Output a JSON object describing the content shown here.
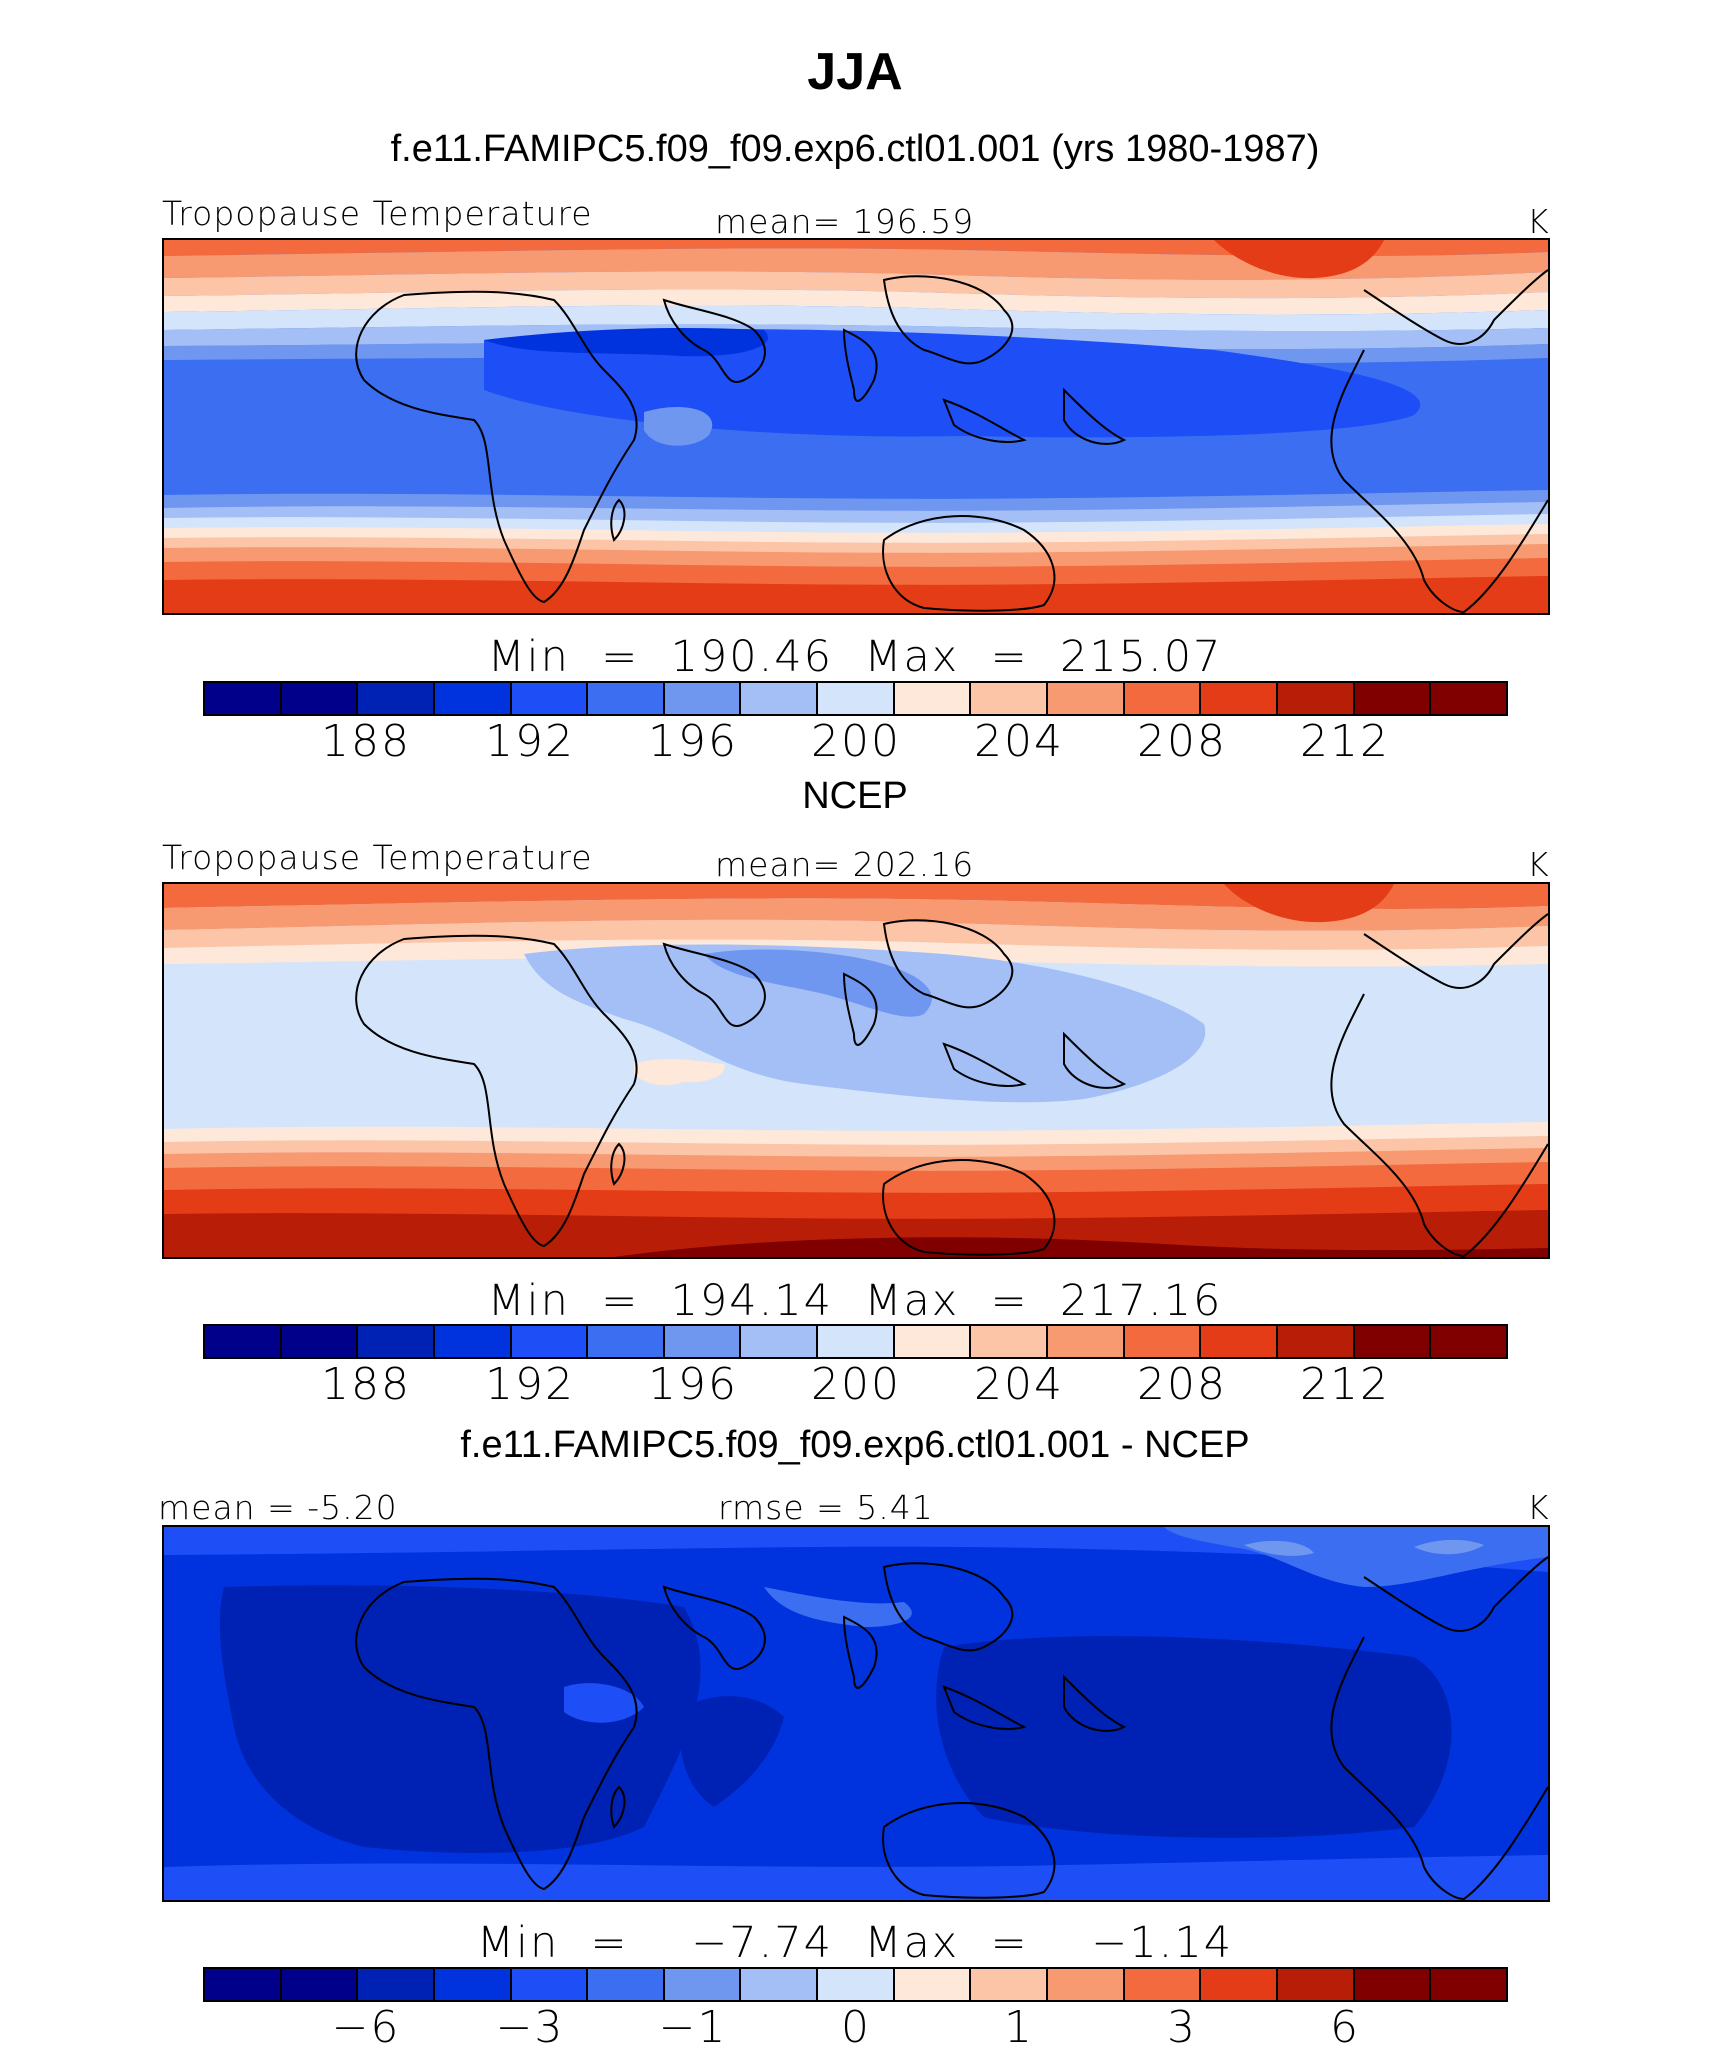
{
  "title": "JJA",
  "colors": [
    "#00008b",
    "#0022b4",
    "#0033dd",
    "#1e4ef5",
    "#3b6ef0",
    "#6f97f0",
    "#a3bff6",
    "#d4e5fb",
    "#fde8d9",
    "#fcc5a8",
    "#f79a72",
    "#f26a3d",
    "#e43c17",
    "#b81d08",
    "#800000"
  ],
  "panels": [
    {
      "title": "f.e11.FAMIPC5.f09_f09.exp6.ctl01.001 (yrs 1980-1987)",
      "left_label": "Tropopause Temperature",
      "center_label": "mean=  196.59",
      "right_label": "K",
      "minmax": "Min  =  190.46  Max  =  215.07",
      "ticks": [
        "188",
        "192",
        "196",
        "200",
        "204",
        "208",
        "212"
      ]
    },
    {
      "title": "NCEP",
      "left_label": "Tropopause Temperature",
      "center_label": "mean=  202.16",
      "right_label": "K",
      "minmax": "Min  =  194.14  Max  =  217.16",
      "ticks": [
        "188",
        "192",
        "196",
        "200",
        "204",
        "208",
        "212"
      ]
    },
    {
      "title": "f.e11.FAMIPC5.f09_f09.exp6.ctl01.001 - NCEP",
      "left_label": "mean  =    -5.20",
      "center_label": "rmse  =     5.41",
      "right_label": "K",
      "minmax": "Min  =    −7.74  Max  =    −1.14",
      "ticks": [
        "−6",
        "−3",
        "−1",
        "0",
        "1",
        "3",
        "6"
      ]
    }
  ]
}
